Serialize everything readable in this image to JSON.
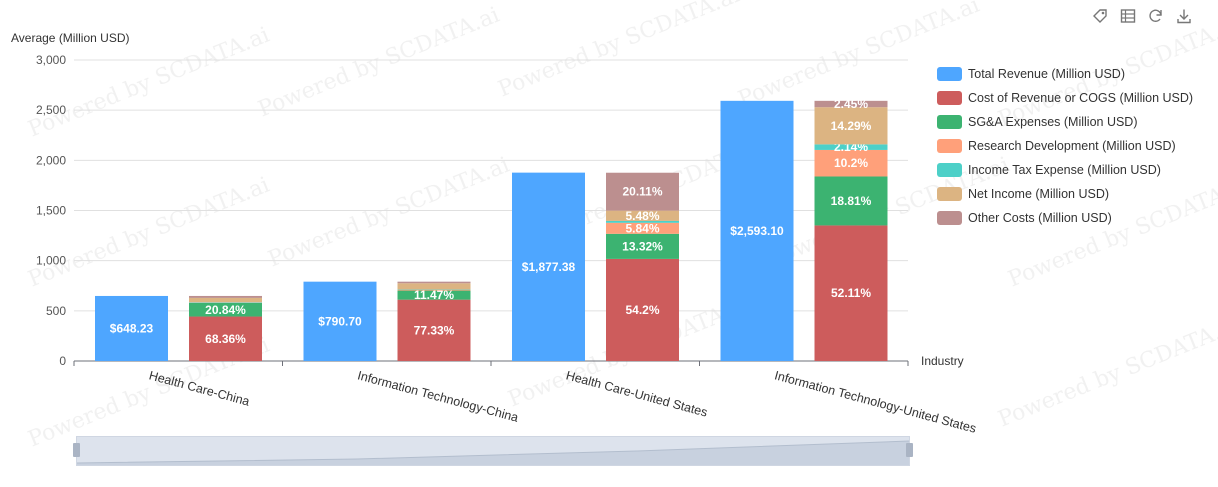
{
  "watermark": "Powered by SCDATA.ai",
  "toolbox": [
    "tag-icon",
    "data-view-icon",
    "refresh-icon",
    "download-icon"
  ],
  "colors": {
    "total": "#4ea6ff",
    "cogs": "#cd5c5c",
    "sga": "#3cb371",
    "rnd": "#ffa07a",
    "tax": "#4dd0c8",
    "net": "#dcb482",
    "other": "#bc8f8f"
  },
  "chart_data": {
    "type": "bar",
    "ylabel": "Average (Million USD)",
    "xlabel": "Industry",
    "ylim": [
      0,
      3000
    ],
    "yticks": [
      0,
      500,
      1000,
      1500,
      2000,
      2500,
      3000
    ],
    "ytick_labels": [
      "0",
      "500",
      "1,000",
      "1,500",
      "2,000",
      "2,500",
      "3,000"
    ],
    "categories": [
      "Health Care-China",
      "Information Technology-China",
      "Health Care-United States",
      "Information Technology-United States"
    ],
    "total_series": {
      "name": "Total Revenue (Million USD)",
      "color_key": "total",
      "values": [
        648.23,
        790.7,
        1877.38,
        2593.1
      ],
      "labels": [
        "$648.23",
        "$790.70",
        "$1,877.38",
        "$2,593.10"
      ]
    },
    "stack_series": [
      {
        "name": "Cost of Revenue or COGS (Million USD)",
        "color_key": "cogs",
        "percent": [
          68.36,
          77.33,
          54.2,
          52.11
        ],
        "labels": [
          "68.36%",
          "77.33%",
          "54.2%",
          "52.11%"
        ]
      },
      {
        "name": "SG&A Expenses (Million USD)",
        "color_key": "sga",
        "percent": [
          20.84,
          11.47,
          13.32,
          18.81
        ],
        "labels": [
          "20.84%",
          "11.47%",
          "13.32%",
          "18.81%"
        ]
      },
      {
        "name": "Research Development (Million USD)",
        "color_key": "rnd",
        "percent": [
          0.5,
          0.7,
          5.84,
          10.2
        ],
        "labels": [
          "",
          "",
          "5.84%",
          "10.2%"
        ]
      },
      {
        "name": "Income Tax Expense (Million USD)",
        "color_key": "tax",
        "percent": [
          0.8,
          0.5,
          1.0,
          2.14
        ],
        "labels": [
          "",
          "",
          "",
          "2.14%"
        ]
      },
      {
        "name": "Net Income (Million USD)",
        "color_key": "net",
        "percent": [
          6.5,
          8.0,
          5.48,
          14.29
        ],
        "labels": [
          "",
          "",
          "5.48%",
          "14.29%"
        ]
      },
      {
        "name": "Other Costs (Million USD)",
        "color_key": "other",
        "percent": [
          3.0,
          2.0,
          20.11,
          2.45
        ],
        "labels": [
          "",
          "",
          "20.11%",
          "2.45%"
        ]
      }
    ]
  }
}
